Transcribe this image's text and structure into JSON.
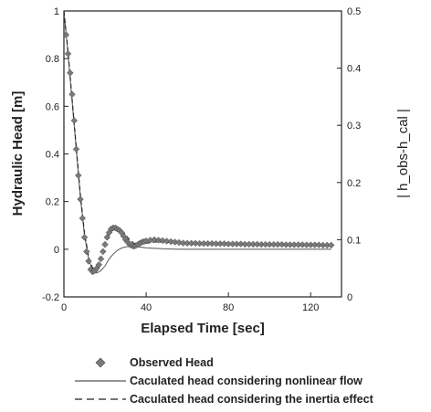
{
  "chart_data": {
    "type": "line",
    "xlabel": "Elapsed Time [sec]",
    "ylabel": "Hydraulic Head [m]",
    "y2label": "| h_obs-h_cal |",
    "xlim": [
      0,
      135
    ],
    "ylim": [
      -0.2,
      1.0
    ],
    "y2lim": [
      0,
      0.5
    ],
    "xticks": [
      "0",
      "40",
      "80",
      "120"
    ],
    "yticks": [
      "-0.2",
      "0",
      "0.2",
      "0.4",
      "0.6",
      "0.8",
      "1"
    ],
    "y2ticks": [
      "0",
      "0.1",
      "0.2",
      "0.3",
      "0.4",
      "0.5"
    ],
    "grid": false,
    "legend_position": "bottom",
    "series": [
      {
        "name": "Observed Head",
        "style": "diamond-markers",
        "color": "#7a7a7a",
        "x": [
          1,
          2,
          3,
          4,
          5,
          6,
          7,
          8,
          9,
          10,
          11,
          12,
          13,
          14,
          15,
          16,
          17,
          18,
          19,
          20,
          21,
          22,
          23,
          24,
          25,
          26,
          27,
          28,
          29,
          30,
          31,
          32,
          33,
          34,
          35,
          36,
          37,
          38,
          39,
          40,
          42,
          44,
          46,
          48,
          50,
          52,
          54,
          56,
          58,
          60,
          62,
          64,
          66,
          68,
          70,
          72,
          74,
          76,
          78,
          80,
          82,
          84,
          86,
          88,
          90,
          92,
          94,
          96,
          98,
          100,
          102,
          104,
          106,
          108,
          110,
          112,
          114,
          116,
          118,
          120,
          122,
          124,
          126,
          128,
          130
        ],
        "y": [
          0.9,
          0.82,
          0.74,
          0.65,
          0.54,
          0.42,
          0.31,
          0.21,
          0.13,
          0.05,
          -0.01,
          -0.05,
          -0.085,
          -0.095,
          -0.09,
          -0.08,
          -0.065,
          -0.04,
          -0.01,
          0.02,
          0.05,
          0.07,
          0.085,
          0.09,
          0.09,
          0.085,
          0.08,
          0.07,
          0.055,
          0.04,
          0.03,
          0.02,
          0.015,
          0.012,
          0.015,
          0.02,
          0.025,
          0.03,
          0.032,
          0.035,
          0.038,
          0.04,
          0.038,
          0.036,
          0.034,
          0.032,
          0.03,
          0.028,
          0.026,
          0.025,
          0.025,
          0.025,
          0.024,
          0.024,
          0.024,
          0.024,
          0.023,
          0.023,
          0.023,
          0.022,
          0.022,
          0.022,
          0.022,
          0.021,
          0.021,
          0.021,
          0.021,
          0.02,
          0.02,
          0.02,
          0.02,
          0.02,
          0.02,
          0.019,
          0.019,
          0.019,
          0.019,
          0.019,
          0.018,
          0.018,
          0.018,
          0.018,
          0.017,
          0.017,
          0.017
        ]
      },
      {
        "name": "Caculated head considering nonlinear flow",
        "style": "solid",
        "color": "#666666",
        "x": [
          0,
          2,
          4,
          6,
          8,
          10,
          12,
          14,
          16,
          18,
          20,
          22,
          24,
          26,
          28,
          30,
          32,
          34,
          36,
          38,
          40,
          44,
          48,
          52,
          56,
          60,
          70,
          80,
          90,
          100,
          110,
          120,
          130
        ],
        "y": [
          1.0,
          0.82,
          0.62,
          0.42,
          0.22,
          0.06,
          -0.04,
          -0.09,
          -0.1,
          -0.09,
          -0.07,
          -0.04,
          -0.02,
          -0.005,
          0.005,
          0.01,
          0.012,
          0.012,
          0.01,
          0.008,
          0.006,
          0.004,
          0.002,
          0.001,
          0.0,
          0.0,
          0.0,
          0.0,
          0.0,
          0.0,
          0.0,
          0.0,
          0.0
        ]
      },
      {
        "name": "Caculated head considering the inertia effect",
        "style": "dashed",
        "color": "#222222",
        "x": [
          0,
          2,
          4,
          6,
          8,
          10,
          12,
          14,
          16,
          18,
          20,
          22,
          24,
          26,
          28,
          30,
          32,
          34,
          36,
          38,
          40,
          44,
          48,
          52,
          56,
          60,
          70,
          80,
          90,
          100,
          110,
          120,
          130
        ],
        "y": [
          1.0,
          0.83,
          0.63,
          0.43,
          0.23,
          0.07,
          -0.03,
          -0.08,
          -0.07,
          -0.03,
          0.02,
          0.06,
          0.085,
          0.09,
          0.08,
          0.06,
          0.04,
          0.025,
          0.02,
          0.022,
          0.025,
          0.03,
          0.03,
          0.028,
          0.026,
          0.025,
          0.024,
          0.023,
          0.022,
          0.021,
          0.02,
          0.019,
          0.018
        ]
      }
    ]
  }
}
